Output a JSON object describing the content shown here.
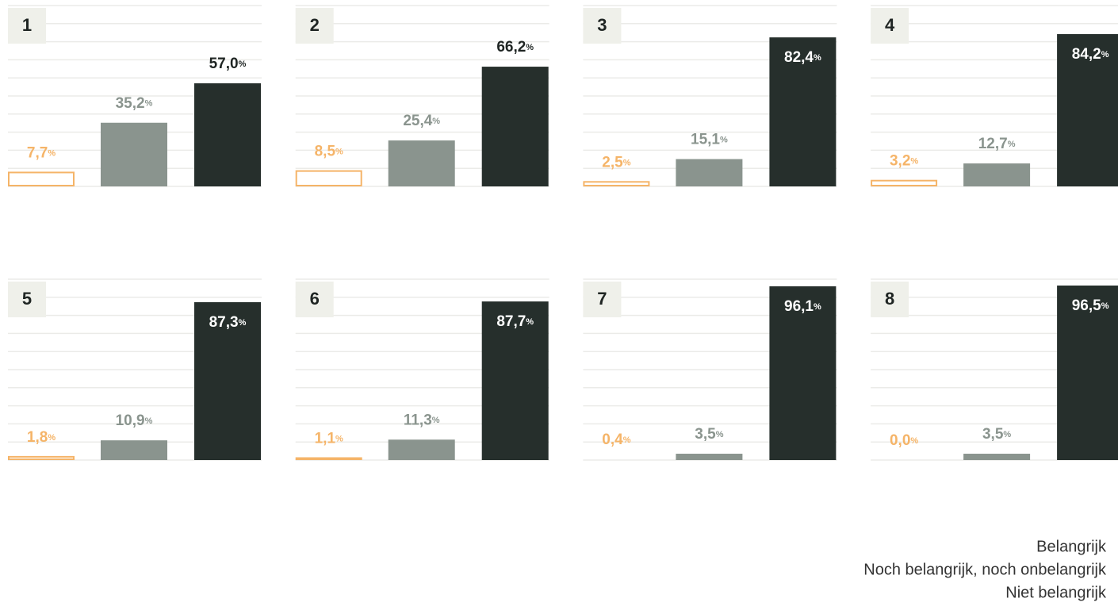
{
  "chart_data": {
    "type": "bar",
    "categories": [
      "1",
      "2",
      "3",
      "4",
      "5",
      "6",
      "7",
      "8"
    ],
    "ylim": [
      0,
      100
    ],
    "yticks": [
      0,
      10,
      20,
      30,
      40,
      50,
      60,
      70,
      80,
      90,
      100
    ],
    "grid": true,
    "series": [
      {
        "name": "Belangrijk",
        "color": "#262f2c",
        "values": [
          57.0,
          66.2,
          82.4,
          84.2,
          87.3,
          87.7,
          96.1,
          96.5
        ],
        "value_labels": [
          "57,0%",
          "66,2%",
          "82,4%",
          "84,2%",
          "87,3%",
          "87,7%",
          "96,1%",
          "96,5%"
        ]
      },
      {
        "name": "Noch belangrijk, noch onbelangrijk",
        "color": "#8a948e",
        "values": [
          35.2,
          25.4,
          15.1,
          12.7,
          10.9,
          11.3,
          3.5,
          3.5
        ],
        "value_labels": [
          "35,2%",
          "25,4%",
          "15,1%",
          "12,7%",
          "10,9%",
          "11,3%",
          "3,5%",
          "3,5%"
        ]
      },
      {
        "name": "Niet belangrijk",
        "color": "#f5b468",
        "values": [
          7.7,
          8.5,
          2.5,
          3.2,
          1.8,
          1.1,
          0.4,
          0.0
        ],
        "value_labels": [
          "7,7%",
          "8,5%",
          "2,5%",
          "3,2%",
          "1,8%",
          "1,1%",
          "0,4%",
          "0,0%"
        ]
      }
    ]
  }
}
